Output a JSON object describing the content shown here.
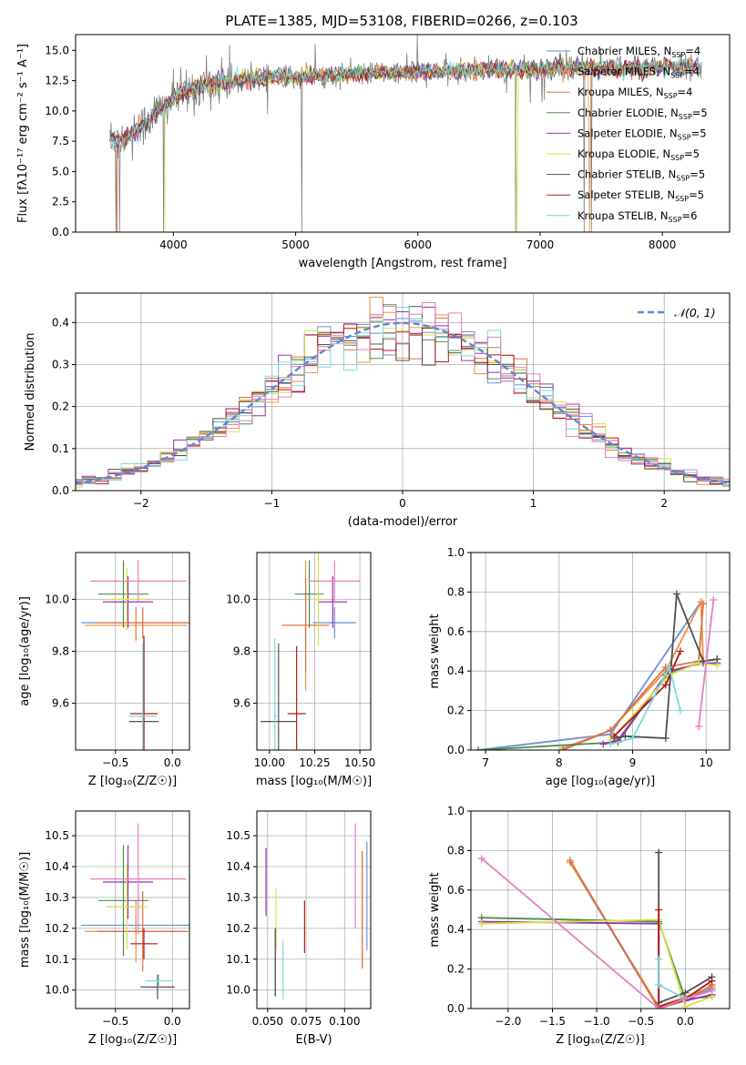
{
  "figure_title": "PLATE=1385, MJD=53108, FIBERID=0266, z=0.103",
  "models": [
    {
      "name": "Chabrier MILES",
      "nssp": 4,
      "color": "#6a8fd8"
    },
    {
      "name": "Salpeter MILES",
      "nssp": 4,
      "color": "#f0913a"
    },
    {
      "name": "Kroupa MILES",
      "nssp": 4,
      "color": "#e07040"
    },
    {
      "name": "Chabrier ELODIE",
      "nssp": 5,
      "color": "#4e8c4e"
    },
    {
      "name": "Salpeter ELODIE",
      "nssp": 5,
      "color": "#9b30b0"
    },
    {
      "name": "Kroupa ELODIE",
      "nssp": 5,
      "color": "#d7e04a"
    },
    {
      "name": "Chabrier STELIB",
      "nssp": 5,
      "color": "#505050"
    },
    {
      "name": "Salpeter STELIB",
      "nssp": 5,
      "color": "#b01818"
    },
    {
      "name": "Kroupa STELIB",
      "nssp": 6,
      "color": "#7adada"
    }
  ],
  "chart_data": [
    {
      "id": "spectrum",
      "type": "line",
      "title": "PLATE=1385, MJD=53108, FIBERID=0266, z=0.103",
      "xlabel": "wavelength [Angstrom, rest frame]",
      "ylabel": "Flux [fλ10⁻¹⁷ erg cm⁻² s⁻¹ A⁻¹]",
      "xlim": [
        3200,
        8550
      ],
      "ylim": [
        0,
        16.3
      ],
      "xticks": [
        4000,
        5000,
        6000,
        7000,
        8000
      ],
      "yticks": [
        0.0,
        2.5,
        5.0,
        7.5,
        10.0,
        12.5,
        15.0
      ],
      "legend": "right",
      "data_color": "#808080",
      "continuum": {
        "x": [
          3460,
          3550,
          3650,
          3750,
          3850,
          3950,
          4050,
          4200,
          4400,
          4600,
          4800,
          5000,
          5200,
          5400,
          5600,
          5800,
          6000,
          6200,
          6400,
          6600,
          6800,
          7000,
          7200,
          7400,
          7600,
          7800,
          8000,
          8200,
          8300
        ],
        "y": [
          7.8,
          7.6,
          8.0,
          8.8,
          9.8,
          10.6,
          11.3,
          12.0,
          12.4,
          12.6,
          12.8,
          12.8,
          12.9,
          13.0,
          13.1,
          13.2,
          13.2,
          13.3,
          13.3,
          13.4,
          13.4,
          13.4,
          13.5,
          13.5,
          13.5,
          13.6,
          13.6,
          13.7,
          13.6
        ]
      },
      "data_range": [
        3480,
        8320
      ],
      "noise_levels": {
        "blue": 1.6,
        "red": 0.8
      },
      "zero_drops": [
        3530,
        3560,
        3920,
        5050,
        6800,
        7360,
        7420
      ]
    },
    {
      "id": "residuals",
      "type": "histogram",
      "xlabel": "(data-model)/error",
      "ylabel": "Normed distribution",
      "xlim": [
        -2.5,
        2.5
      ],
      "ylim": [
        0,
        0.47
      ],
      "xticks": [
        -2,
        -1,
        0,
        1,
        2
      ],
      "yticks": [
        0.0,
        0.1,
        0.2,
        0.3,
        0.4
      ],
      "reference_label": "𝒩(0, 1)",
      "reference_color": "#5b88d4",
      "legend": "top-right",
      "bin_width": 0.1
    },
    {
      "id": "z-vs-age",
      "type": "errorbar",
      "xlabel": "Z [log₁₀(Z/Z☉)]",
      "ylabel": "age  [log₁₀(age/yr)]",
      "xlim": [
        -0.85,
        0.15
      ],
      "ylim": [
        9.42,
        10.18
      ],
      "xticks": [
        -0.5,
        0.0
      ],
      "yticks": [
        9.6,
        9.8,
        10.0
      ],
      "points": [
        {
          "x": -0.32,
          "y": 9.91,
          "xerr": 0.48,
          "yerr": 0.06
        },
        {
          "x": -0.32,
          "y": 9.9,
          "xerr": 0.45,
          "yerr": 0.06
        },
        {
          "x": -0.26,
          "y": 9.91,
          "xerr": 0.4,
          "yerr": 0.06
        },
        {
          "x": -0.43,
          "y": 10.02,
          "xerr": 0.22,
          "yerr": 0.13
        },
        {
          "x": -0.39,
          "y": 9.99,
          "xerr": 0.22,
          "yerr": 0.1
        },
        {
          "x": -0.4,
          "y": 10.0,
          "xerr": 0.18,
          "yerr": 0.12
        },
        {
          "x": -0.25,
          "y": 9.53,
          "xerr": 0.13,
          "yerr": 0.32
        },
        {
          "x": -0.25,
          "y": 9.56,
          "xerr": 0.12,
          "yerr": 0.3
        },
        {
          "x": -0.26,
          "y": 9.55,
          "xerr": 0.12,
          "yerr": 0.28
        },
        {
          "x": -0.3,
          "y": 10.07,
          "xerr": 0.42,
          "yerr": 0.08
        }
      ],
      "point_colors": [
        0,
        1,
        2,
        3,
        4,
        5,
        6,
        7,
        8,
        9
      ]
    },
    {
      "id": "mass-vs-age",
      "type": "errorbar",
      "xlabel": "mass [log₁₀(M/M☉)]",
      "ylabel": "",
      "xlim": [
        9.93,
        10.56
      ],
      "ylim": [
        9.42,
        10.18
      ],
      "xticks": [
        10.0,
        10.25,
        10.5
      ],
      "yticks": [
        9.6,
        9.8,
        10.0
      ],
      "points": [
        {
          "x": 10.36,
          "y": 9.91,
          "xerr": 0.12,
          "yerr": 0.06
        },
        {
          "x": 10.2,
          "y": 9.9,
          "xerr": 0.13,
          "yerr": 0.25
        },
        {
          "x": 10.2,
          "y": 9.9,
          "xerr": 0.13,
          "yerr": 0.18
        },
        {
          "x": 10.22,
          "y": 10.02,
          "xerr": 0.08,
          "yerr": 0.13
        },
        {
          "x": 10.35,
          "y": 9.99,
          "xerr": 0.08,
          "yerr": 0.1
        },
        {
          "x": 10.27,
          "y": 10.0,
          "xerr": 0.04,
          "yerr": 0.18
        },
        {
          "x": 10.05,
          "y": 9.53,
          "xerr": 0.1,
          "yerr": 0.3
        },
        {
          "x": 10.15,
          "y": 9.56,
          "xerr": 0.05,
          "yerr": 0.26
        },
        {
          "x": 10.03,
          "y": 9.55,
          "xerr": 0.01,
          "yerr": 0.3
        },
        {
          "x": 10.36,
          "y": 10.07,
          "xerr": 0.14,
          "yerr": 0.08
        }
      ],
      "point_colors": [
        0,
        1,
        2,
        3,
        4,
        5,
        6,
        7,
        8,
        9
      ]
    },
    {
      "id": "age-vs-weight",
      "type": "line",
      "xlabel": "age  [log₁₀(age/yr)]",
      "ylabel": "mass weight",
      "xlim": [
        6.8,
        10.32
      ],
      "ylim": [
        0,
        1.0
      ],
      "xticks": [
        7,
        8,
        9,
        10
      ],
      "yticks": [
        0.0,
        0.2,
        0.4,
        0.6,
        0.8,
        1.0
      ],
      "series": [
        {
          "x": [
            6.9,
            8.7,
            9.93
          ],
          "y": [
            0.0,
            0.08,
            0.75
          ],
          "color_index": 0
        },
        {
          "x": [
            8.05,
            8.7,
            9.45,
            9.93,
            9.96
          ],
          "y": [
            0.01,
            0.1,
            0.4,
            0.75,
            0.45
          ],
          "color_index": 1
        },
        {
          "x": [
            8.05,
            8.7,
            9.45,
            9.9,
            9.96
          ],
          "y": [
            0.0,
            0.1,
            0.42,
            0.45,
            0.74
          ],
          "color_index": 2
        },
        {
          "x": [
            6.9,
            8.8,
            9.45,
            9.96,
            10.15
          ],
          "y": [
            0.0,
            0.04,
            0.38,
            0.45,
            0.46
          ],
          "color_index": 3
        },
        {
          "x": [
            8.6,
            8.8,
            9.5,
            9.96,
            10.15
          ],
          "y": [
            0.03,
            0.05,
            0.4,
            0.44,
            0.44
          ],
          "color_index": 4
        },
        {
          "x": [
            8.7,
            9.5,
            9.9,
            10.15
          ],
          "y": [
            0.05,
            0.38,
            0.44,
            0.43
          ],
          "color_index": 5
        },
        {
          "x": [
            8.75,
            8.9,
            9.45,
            9.6,
            9.96,
            10.15
          ],
          "y": [
            0.06,
            0.07,
            0.06,
            0.79,
            0.45,
            0.46
          ],
          "color_index": 6
        },
        {
          "x": [
            8.75,
            9.45,
            9.65
          ],
          "y": [
            0.07,
            0.33,
            0.5
          ],
          "color_index": 7
        },
        {
          "x": [
            8.7,
            9.0,
            9.5,
            9.65
          ],
          "y": [
            0.03,
            0.06,
            0.42,
            0.2
          ],
          "color_index": 8
        },
        {
          "x": [
            9.9,
            10.1
          ],
          "y": [
            0.12,
            0.76
          ],
          "color_index": 9
        }
      ]
    },
    {
      "id": "z-vs-mass",
      "type": "errorbar",
      "xlabel": "Z [log₁₀(Z/Z☉)]",
      "ylabel": "mass [log₁₀(M/M☉)]",
      "xlim": [
        -0.85,
        0.15
      ],
      "ylim": [
        9.94,
        10.58
      ],
      "xticks": [
        -0.5,
        0.0
      ],
      "yticks": [
        10.0,
        10.1,
        10.2,
        10.3,
        10.4,
        10.5
      ],
      "points": [
        {
          "x": -0.32,
          "y": 10.21,
          "xerr": 0.48,
          "yerr": 0.03
        },
        {
          "x": -0.32,
          "y": 10.19,
          "xerr": 0.45,
          "yerr": 0.1
        },
        {
          "x": -0.26,
          "y": 10.19,
          "xerr": 0.4,
          "yerr": 0.13
        },
        {
          "x": -0.43,
          "y": 10.29,
          "xerr": 0.22,
          "yerr": 0.18
        },
        {
          "x": -0.39,
          "y": 10.35,
          "xerr": 0.22,
          "yerr": 0.12
        },
        {
          "x": -0.4,
          "y": 10.27,
          "xerr": 0.18,
          "yerr": 0.14
        },
        {
          "x": -0.13,
          "y": 10.01,
          "xerr": 0.15,
          "yerr": 0.04
        },
        {
          "x": -0.25,
          "y": 10.15,
          "xerr": 0.12,
          "yerr": 0.05
        },
        {
          "x": -0.12,
          "y": 10.03,
          "xerr": 0.12,
          "yerr": 0.02
        },
        {
          "x": -0.3,
          "y": 10.36,
          "xerr": 0.42,
          "yerr": 0.18
        }
      ],
      "point_colors": [
        0,
        1,
        2,
        3,
        4,
        5,
        6,
        7,
        8,
        9
      ]
    },
    {
      "id": "ebv-vs-mass",
      "type": "errorbar",
      "xlabel": "E(B-V)",
      "ylabel": "",
      "xlim": [
        0.043,
        0.117
      ],
      "ylim": [
        9.94,
        10.58
      ],
      "xticks": [
        0.05,
        0.075,
        0.1
      ],
      "yticks": [
        10.0,
        10.1,
        10.2,
        10.3,
        10.4,
        10.5
      ],
      "points": [
        {
          "x": 0.1145,
          "y": 10.305,
          "xerr": 0,
          "yerr": 0.175
        },
        {
          "x": 0.1115,
          "y": 10.26,
          "xerr": 0,
          "yerr": 0.19
        },
        {
          "x": 0.1115,
          "y": 10.26,
          "xerr": 0,
          "yerr": 0.19
        },
        {
          "x": 0.055,
          "y": 10.09,
          "xerr": 0,
          "yerr": 0.11
        },
        {
          "x": 0.049,
          "y": 10.35,
          "xerr": 0,
          "yerr": 0.11
        },
        {
          "x": 0.0555,
          "y": 10.23,
          "xerr": 0,
          "yerr": 0.1
        },
        {
          "x": 0.055,
          "y": 10.09,
          "xerr": 0,
          "yerr": 0.11
        },
        {
          "x": 0.074,
          "y": 10.205,
          "xerr": 0,
          "yerr": 0.085
        },
        {
          "x": 0.06,
          "y": 10.065,
          "xerr": 0,
          "yerr": 0.095
        },
        {
          "x": 0.107,
          "y": 10.37,
          "xerr": 0,
          "yerr": 0.17
        }
      ],
      "point_colors": [
        0,
        1,
        2,
        3,
        4,
        5,
        6,
        7,
        8,
        9
      ]
    },
    {
      "id": "z-vs-weight",
      "type": "line",
      "xlabel": "Z [log₁₀(Z/Z☉)]",
      "ylabel": "mass weight",
      "xlim": [
        -2.42,
        0.5
      ],
      "ylim": [
        0,
        1.0
      ],
      "xticks": [
        -2.0,
        -1.5,
        -1.0,
        -0.5,
        0.0
      ],
      "yticks": [
        0.0,
        0.2,
        0.4,
        0.6,
        0.8,
        1.0
      ],
      "series": [
        {
          "x": [
            -1.3,
            -0.3,
            0.0,
            0.3
          ],
          "y": [
            0.74,
            0.0,
            0.05,
            0.1
          ],
          "color_index": 0
        },
        {
          "x": [
            -1.3,
            -0.3,
            0.0,
            0.3
          ],
          "y": [
            0.74,
            0.01,
            0.06,
            0.11
          ],
          "color_index": 1
        },
        {
          "x": [
            -1.3,
            -0.3,
            0.0,
            0.3
          ],
          "y": [
            0.75,
            0.0,
            0.04,
            0.12
          ],
          "color_index": 2
        },
        {
          "x": [
            -2.3,
            -0.3,
            0.0,
            0.3
          ],
          "y": [
            0.46,
            0.44,
            0.05,
            0.06
          ],
          "color_index": 3
        },
        {
          "x": [
            -2.3,
            -0.3,
            -0.3,
            0.0,
            0.3
          ],
          "y": [
            0.44,
            0.43,
            0.01,
            0.04,
            0.07
          ],
          "color_index": 4
        },
        {
          "x": [
            -2.3,
            -0.3,
            0.0,
            0.3
          ],
          "y": [
            0.43,
            0.45,
            0.01,
            0.06
          ],
          "color_index": 5
        },
        {
          "x": [
            -0.3,
            -0.3,
            0.0,
            0.3
          ],
          "y": [
            0.79,
            0.03,
            0.08,
            0.16
          ],
          "color_index": 6
        },
        {
          "x": [
            -0.3,
            -0.3,
            0.0,
            0.3
          ],
          "y": [
            0.5,
            0.01,
            0.05,
            0.14
          ],
          "color_index": 7
        },
        {
          "x": [
            -0.3,
            -0.3,
            0.0,
            0.3
          ],
          "y": [
            0.25,
            0.12,
            0.05,
            0.09
          ],
          "color_index": 8
        },
        {
          "x": [
            -2.3,
            -0.3,
            0.0,
            0.3
          ],
          "y": [
            0.76,
            0.0,
            0.05,
            0.09
          ],
          "color_index": 9
        }
      ]
    }
  ],
  "colors": {
    "extra_series": "#e47fbf",
    "grid": "#b0b0b0"
  }
}
